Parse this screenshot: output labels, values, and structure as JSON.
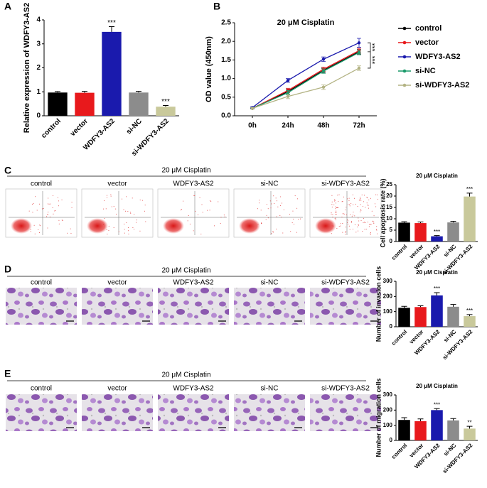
{
  "panel_labels": [
    "A",
    "B",
    "C",
    "D",
    "E"
  ],
  "image_rows": [
    {
      "title": "20 μM Cisplatin",
      "labels": [
        "control",
        "vector",
        "WDFY3-AS2",
        "si-NC",
        "si-WDFY3-AS2"
      ]
    },
    {
      "title": "20 μM Cisplatin",
      "labels": [
        "control",
        "vector",
        "WDFY3-AS2",
        "si-NC",
        "si-WDFY3-AS2"
      ]
    },
    {
      "title": "20 μM Cisplatin",
      "labels": [
        "control",
        "vector",
        "WDFY3-AS2",
        "si-NC",
        "si-WDFY3-AS2"
      ]
    }
  ],
  "chart_data": [
    {
      "type": "bar",
      "ylabel": "Relative expression of WDFY3-AS2",
      "categories": [
        "control",
        "vector",
        "WDFY3-AS2",
        "si-NC",
        "si-WDFY3-AS2"
      ],
      "values": [
        0.97,
        0.96,
        3.5,
        0.97,
        0.38
      ],
      "errors": [
        0.04,
        0.06,
        0.22,
        0.05,
        0.05
      ],
      "colors": [
        "#000000",
        "#e8191c",
        "#1a1aad",
        "#8c8c8c",
        "#c9c99b"
      ],
      "value_annotations": [
        null,
        null,
        "***",
        null,
        "***"
      ],
      "ylim": [
        0,
        4
      ],
      "yticks": [
        0,
        1,
        2,
        3,
        4
      ]
    },
    {
      "type": "line",
      "title": "20 μM Cisplatin",
      "ylabel": "OD value (450nm)",
      "categories": [
        "0h",
        "24h",
        "48h",
        "72h"
      ],
      "series": [
        {
          "name": "control",
          "color": "#000000",
          "values": [
            0.2,
            0.65,
            1.22,
            1.72
          ],
          "errors": [
            0.02,
            0.07,
            0.06,
            0.06
          ]
        },
        {
          "name": "vector",
          "color": "#e8191c",
          "values": [
            0.2,
            0.68,
            1.25,
            1.75
          ],
          "errors": [
            0.02,
            0.06,
            0.06,
            0.06
          ]
        },
        {
          "name": "WDFY3-AS2",
          "color": "#1a1aad",
          "values": [
            0.22,
            0.95,
            1.52,
            1.96
          ],
          "errors": [
            0.02,
            0.05,
            0.06,
            0.12
          ]
        },
        {
          "name": "si-NC",
          "color": "#1a9a6a",
          "values": [
            0.2,
            0.62,
            1.2,
            1.7
          ],
          "errors": [
            0.02,
            0.06,
            0.06,
            0.06
          ]
        },
        {
          "name": "si-WDFY3-AS2",
          "color": "#b3b384",
          "values": [
            0.2,
            0.52,
            0.77,
            1.28
          ],
          "errors": [
            0.02,
            0.06,
            0.06,
            0.06
          ]
        }
      ],
      "annotations": [
        "***",
        "***"
      ],
      "ylim": [
        0,
        2.5
      ],
      "yticks": [
        {
          "value": 0,
          "label": "0.0"
        },
        0.5,
        {
          "value": 1,
          "label": "1.0"
        },
        1.5,
        {
          "value": 2,
          "label": "2.0"
        },
        2.5
      ]
    },
    {
      "type": "bar",
      "title": "20 μM Cisplatin",
      "ylabel": "Cell apoptosis rate (%)",
      "categories": [
        "control",
        "vector",
        "WDFY3-AS2",
        "si-NC",
        "si-WDFY3-AS2"
      ],
      "values": [
        8.3,
        8.1,
        2.3,
        8.4,
        19.8
      ],
      "errors": [
        0.4,
        0.5,
        0.3,
        0.5,
        1.5
      ],
      "colors": [
        "#000000",
        "#e8191c",
        "#1a1aad",
        "#8c8c8c",
        "#c9c99b"
      ],
      "value_annotations": [
        null,
        null,
        "***",
        null,
        "***"
      ],
      "ylim": [
        0,
        25
      ],
      "yticks": [
        0,
        5,
        10,
        15,
        20,
        25
      ]
    },
    {
      "type": "bar",
      "title": "20 μM Cisplatin",
      "ylabel": "Number of invasion cells",
      "categories": [
        "control",
        "vector",
        "WDFY3-AS2",
        "si-NC",
        "si-WDFY3-AS2"
      ],
      "values": [
        125,
        130,
        207,
        132,
        70
      ],
      "errors": [
        10,
        8,
        18,
        15,
        10
      ],
      "colors": [
        "#000000",
        "#e8191c",
        "#1a1aad",
        "#8c8c8c",
        "#c9c99b"
      ],
      "value_annotations": [
        null,
        null,
        "***",
        null,
        "***"
      ],
      "ylim": [
        0,
        300
      ],
      "yticks": [
        0,
        100,
        200,
        300
      ]
    },
    {
      "type": "bar",
      "title": "20 μM Cisplatin",
      "ylabel": "Number of migration cells",
      "categories": [
        "control",
        "vector",
        "WDFY3-AS2",
        "si-NC",
        "si-WDFY3-AS2"
      ],
      "values": [
        135,
        127,
        200,
        132,
        78
      ],
      "errors": [
        15,
        15,
        10,
        12,
        15
      ],
      "colors": [
        "#000000",
        "#e8191c",
        "#1a1aad",
        "#8c8c8c",
        "#c9c99b"
      ],
      "value_annotations": [
        null,
        null,
        "***",
        null,
        "**"
      ],
      "ylim": [
        0,
        300
      ],
      "yticks": [
        0,
        100,
        200,
        300
      ]
    }
  ]
}
